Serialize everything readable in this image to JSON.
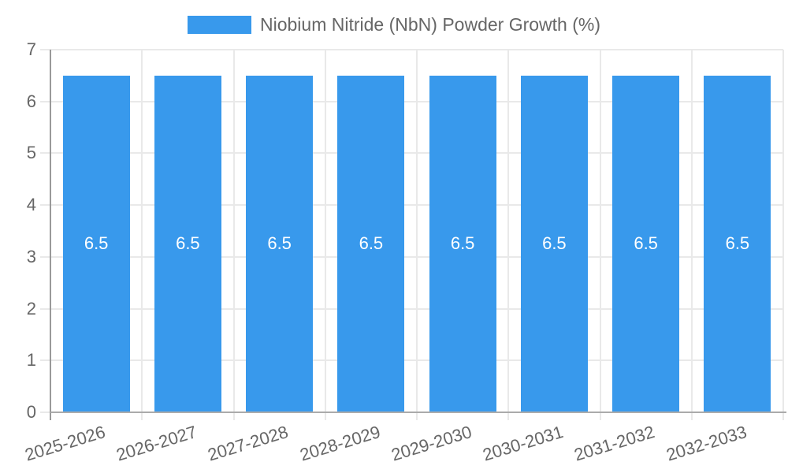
{
  "chart_data": {
    "type": "bar",
    "title": "Niobium Nitride (NbN) Powder Growth (%)",
    "legend": {
      "position": "top",
      "label": "Niobium Nitride (NbN) Powder Growth (%)"
    },
    "categories": [
      "2025-2026",
      "2026-2027",
      "2027-2028",
      "2028-2029",
      "2029-2030",
      "2030-2031",
      "2031-2032",
      "2032-2033"
    ],
    "series": [
      {
        "name": "Niobium Nitride (NbN) Powder Growth (%)",
        "values": [
          6.5,
          6.5,
          6.5,
          6.5,
          6.5,
          6.5,
          6.5,
          6.5
        ]
      }
    ],
    "bar_value_labels": [
      "6.5",
      "6.5",
      "6.5",
      "6.5",
      "6.5",
      "6.5",
      "6.5",
      "6.5"
    ],
    "xlabel": "",
    "ylabel": "",
    "ylim": [
      0,
      7
    ],
    "yticks": [
      0,
      1,
      2,
      3,
      4,
      5,
      6,
      7
    ],
    "grid": true,
    "colors": {
      "bar": "#3899ec",
      "bar_label": "#ffffff",
      "tick_label": "#666666",
      "legend_label": "#666666",
      "gridline": "#e9e9e9",
      "y_axis_line": "#999999",
      "x_baseline": "#ababab"
    }
  }
}
